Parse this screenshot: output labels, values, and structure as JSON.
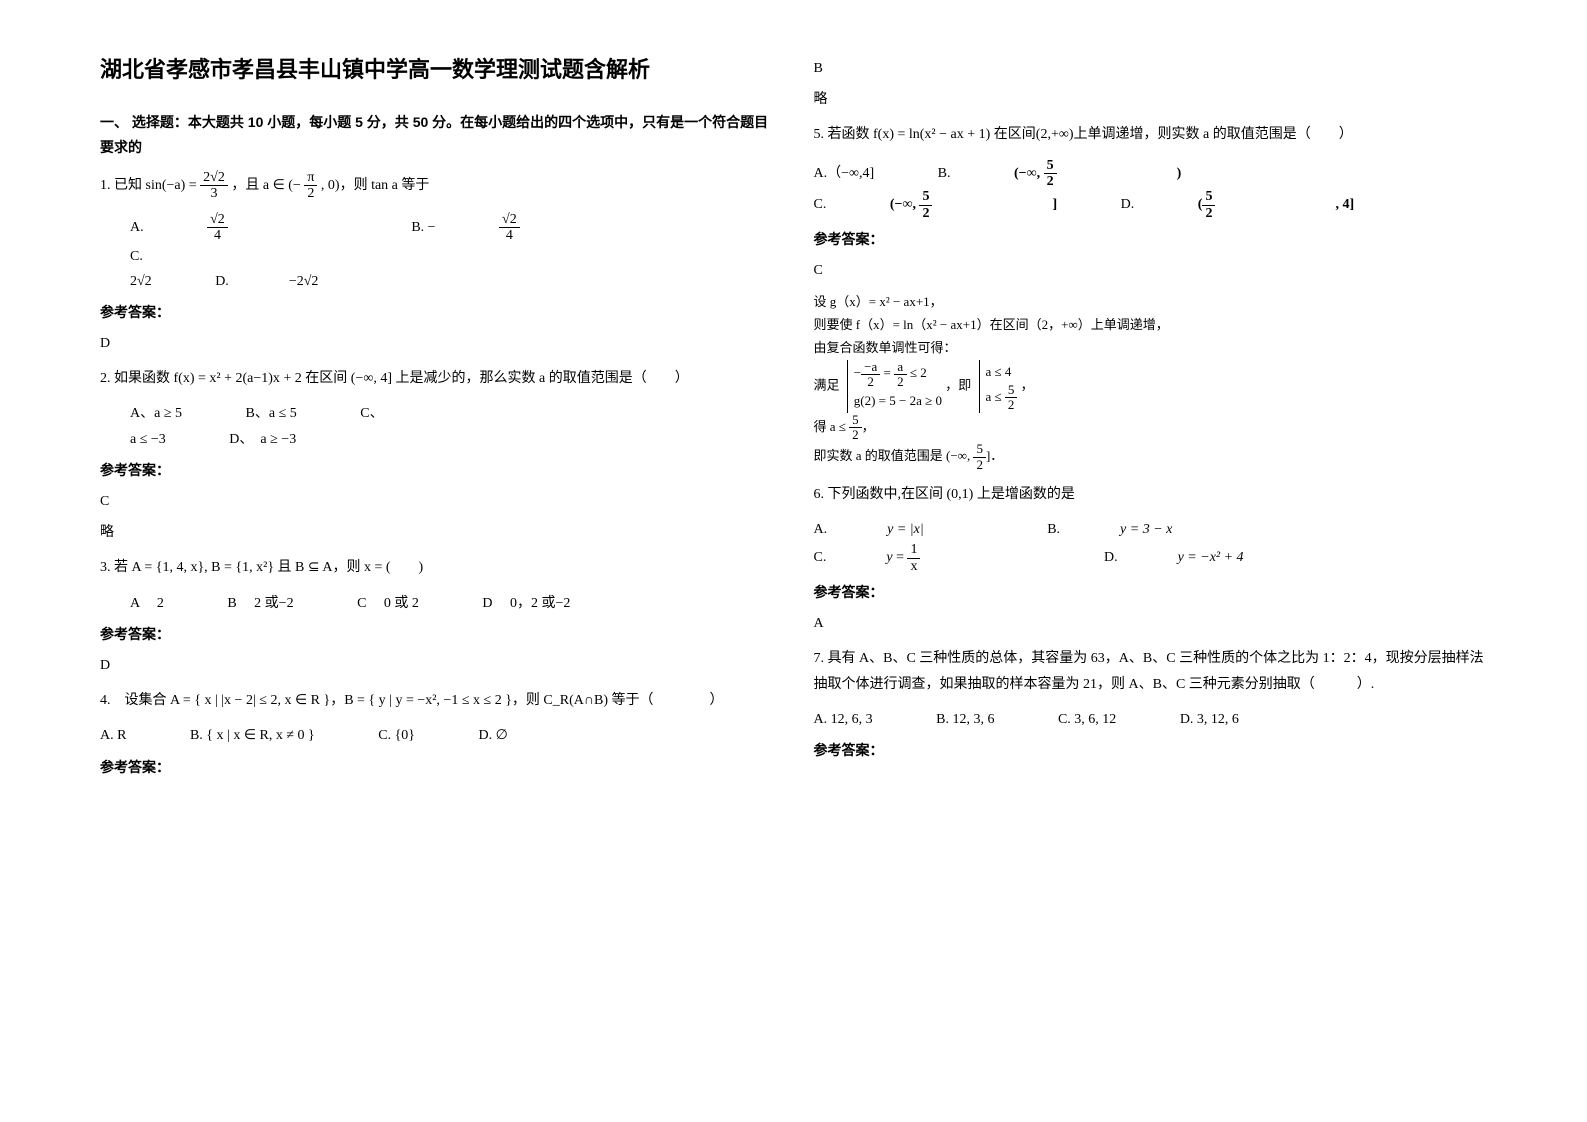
{
  "title": "湖北省孝感市孝昌县丰山镇中学高一数学理测试题含解析",
  "section_head": "一、 选择题：本大题共 10 小题，每小题 5 分，共 50 分。在每小题给出的四个选项中，只有是一个符合题目要求的",
  "q1": {
    "stem_a": "1. 已知 sin(−a) = ",
    "frac1_n": "2√2",
    "frac1_d": "3",
    "stem_b": "，且 a ∈ (−",
    "frac2_n": "π",
    "frac2_d": "2",
    "stem_c": ", 0)，则 tan a 等于",
    "optA_label": "A. ",
    "optA_n": "√2",
    "optA_d": "4",
    "optB_label": "B. −",
    "optB_n": "√2",
    "optB_d": "4",
    "optC_label": "C.",
    "optC_val": "2√2",
    "optD_label": "D. ",
    "optD_val": "−2√2",
    "ans": "D"
  },
  "q2": {
    "stem": "2. 如果函数 f(x) = x² + 2(a−1)x + 2 在区间 (−∞, 4] 上是减少的，那么实数 a 的取值范围是（　　）",
    "optA": "A、a ≥ 5",
    "optB": "B、a ≤ 5",
    "optC": "C、",
    "optC2": "a ≤ −3",
    "optD": "D、　a ≥ −3",
    "ans": "C",
    "brief": "略"
  },
  "q3": {
    "stem": "3. 若 A = {1, 4, x}, B = {1, x²} 且 B ⊆ A，则 x = (　　)",
    "optA": "A　 2",
    "optB": "B　 2 或−2",
    "optC": "C　 0 或 2",
    "optD": "D　 0，2 或−2",
    "ans": "D"
  },
  "q4": {
    "stem": "4.　设集合 A = { x | |x − 2| ≤ 2, x ∈ R }，B = { y | y = −x², −1 ≤ x ≤ 2 }，则 C_R(A∩B) 等于（　　　　）",
    "optA": "A. R",
    "optB": "B. { x | x ∈ R, x ≠ 0 }",
    "optC": "C. {0}",
    "optD": "D. ∅",
    "ans": "B",
    "brief": "略"
  },
  "q5": {
    "stem": "5. 若函数 f(x) = ln(x² − ax + 1) 在区间(2,+∞)上单调递增，则实数 a 的取值范围是（　　）",
    "optA": "A.（−∞,4]",
    "optB_pre": "B. ",
    "optB_interval": "(−∞, 5/2)",
    "optC_pre": "C. ",
    "optC_interval": "(−∞, 5/2]",
    "optD_pre": "D. ",
    "optD_interval": "(5/2, 4]",
    "ans": "C",
    "sol_l1": "设 g（x）= x² − ax+1，",
    "sol_l2": "则要使 f（x）= ln（x² − ax+1）在区间（2，+∞）上单调递增，",
    "sol_l3": "由复合函数单调性可得：",
    "sol_l4": "满足",
    "sol_l4b": "− (−a)/2 = a/2 ≤ 2　且　g(2) = 5 − 2a ≥ 0，即 a ≤ 4 且 a ≤ 5/2，",
    "sol_l5": "得 a ≤ 5/2，",
    "sol_l6": "即实数 a 的取值范围是 (−∞, 5/2]．"
  },
  "q6": {
    "stem": "6. 下列函数中,在区间 (0,1) 上是增函数的是",
    "optA_pre": "A. ",
    "optA_val": "y = |x|",
    "optB_pre": "B. ",
    "optB_val": "y = 3 − x",
    "optC_pre": "C. ",
    "optC_n": "1",
    "optC_d": "x",
    "optD_pre": "D. ",
    "optD_val": "y = −x² + 4",
    "ans": "A"
  },
  "q7": {
    "stem": "7. 具有 A、B、C 三种性质的总体，其容量为 63，A、B、C 三种性质的个体之比为 1：2：4，现按分层抽样法抽取个体进行调查，如果抽取的样本容量为 21，则 A、B、C 三种元素分别抽取（　　　）.",
    "optA": "A.  12, 6, 3",
    "optB": "B.  12, 3, 6",
    "optC": "C.  3, 6, 12",
    "optD": "D.  3, 12,  6"
  },
  "ans_label": "参考答案："
}
